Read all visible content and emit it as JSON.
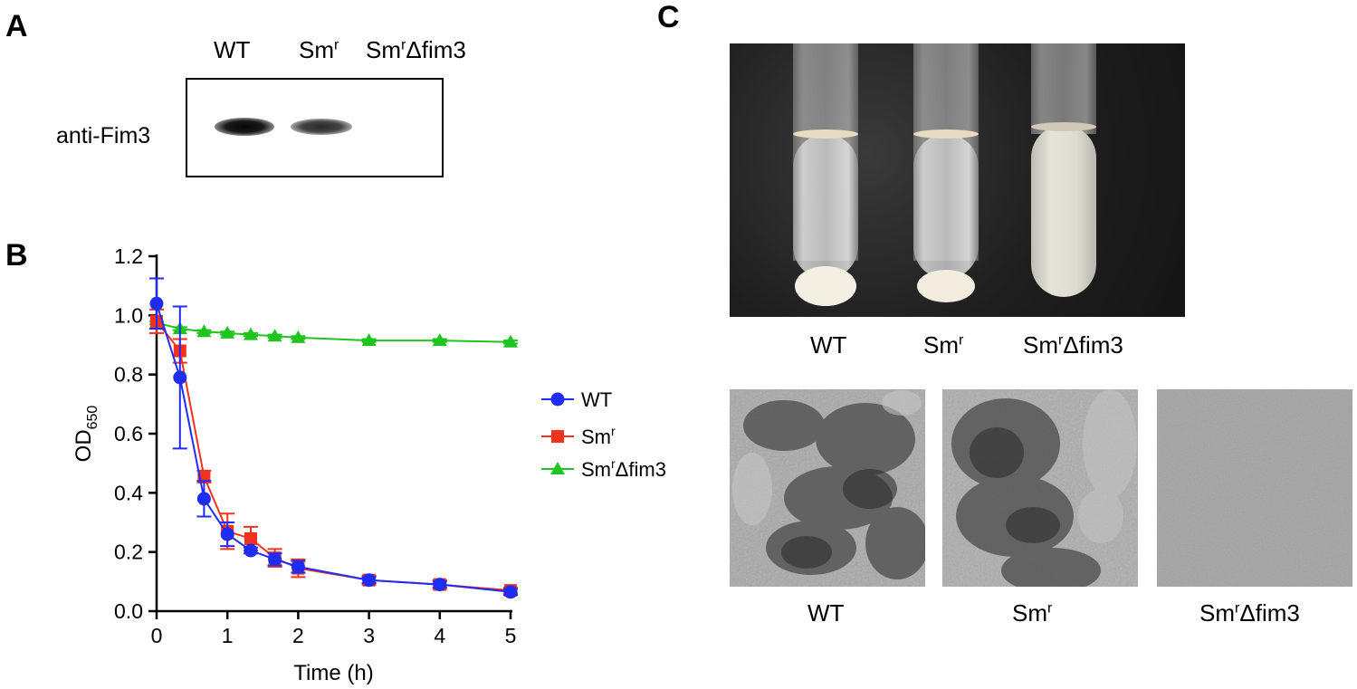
{
  "panels": {
    "a": {
      "letter": "A"
    },
    "b": {
      "letter": "B"
    },
    "c": {
      "letter": "C"
    }
  },
  "blot": {
    "row_label": "anti-Fim3",
    "lanes": [
      {
        "base": "WT",
        "sup": "",
        "tail": ""
      },
      {
        "base": "Sm",
        "sup": "r",
        "tail": ""
      },
      {
        "base": "Sm",
        "sup": "r",
        "tail": "Δfim3"
      }
    ]
  },
  "tubes": {
    "labels": [
      {
        "base": "WT",
        "sup": "",
        "tail": ""
      },
      {
        "base": "Sm",
        "sup": "r",
        "tail": ""
      },
      {
        "base": "Sm",
        "sup": "r",
        "tail": "Δfim3"
      }
    ]
  },
  "microscopy": {
    "labels": [
      {
        "base": "WT",
        "sup": "",
        "tail": ""
      },
      {
        "base": "Sm",
        "sup": "r",
        "tail": ""
      },
      {
        "base": "Sm",
        "sup": "r",
        "tail": "Δfim3"
      }
    ]
  },
  "colors": {
    "wt": "#1f2cf2",
    "smr": "#f2321f",
    "smr_dfim3": "#1fc41f"
  },
  "chart_data": {
    "type": "line",
    "title": "",
    "xlabel": "Time (h)",
    "ylabel": "OD",
    "ylabel_sub": "650",
    "xlim": [
      0,
      5
    ],
    "ylim": [
      0,
      1.2
    ],
    "xticks": [
      0,
      1,
      2,
      3,
      4,
      5
    ],
    "yticks": [
      "0.0",
      "0.2",
      "0.4",
      "0.6",
      "0.8",
      "1.0",
      "1.2"
    ],
    "legend_position": "right",
    "series": [
      {
        "name": "WT",
        "name_sup": "",
        "name_tail": "",
        "marker": "circle",
        "color": "#1f2cf2",
        "x": [
          0,
          0.33,
          0.67,
          1,
          1.33,
          1.67,
          2,
          3,
          4,
          5
        ],
        "y": [
          1.04,
          0.79,
          0.38,
          0.26,
          0.205,
          0.175,
          0.15,
          0.105,
          0.09,
          0.065
        ],
        "err": [
          0.085,
          0.24,
          0.06,
          0.04,
          0.01,
          0.02,
          0.02,
          0.01,
          0.01,
          0.01
        ]
      },
      {
        "name": "Sm",
        "name_sup": "r",
        "name_tail": "",
        "marker": "square",
        "color": "#f2321f",
        "x": [
          0,
          0.33,
          0.67,
          1,
          1.33,
          1.67,
          2,
          3,
          4,
          5
        ],
        "y": [
          0.98,
          0.88,
          0.455,
          0.27,
          0.245,
          0.18,
          0.145,
          0.105,
          0.09,
          0.07
        ],
        "err": [
          0.04,
          0.04,
          0.02,
          0.06,
          0.04,
          0.03,
          0.03,
          0.015,
          0.015,
          0.01
        ]
      },
      {
        "name": "Sm",
        "name_sup": "r",
        "name_tail": "Δfim3",
        "marker": "triangle",
        "color": "#1fc41f",
        "x": [
          0,
          0.33,
          0.67,
          1,
          1.33,
          1.67,
          2,
          3,
          4,
          5
        ],
        "y": [
          0.975,
          0.955,
          0.945,
          0.94,
          0.935,
          0.93,
          0.925,
          0.915,
          0.915,
          0.91
        ],
        "err": [
          0.005,
          0.005,
          0.005,
          0.005,
          0.005,
          0.005,
          0.005,
          0.005,
          0.005,
          0.005
        ]
      }
    ]
  }
}
